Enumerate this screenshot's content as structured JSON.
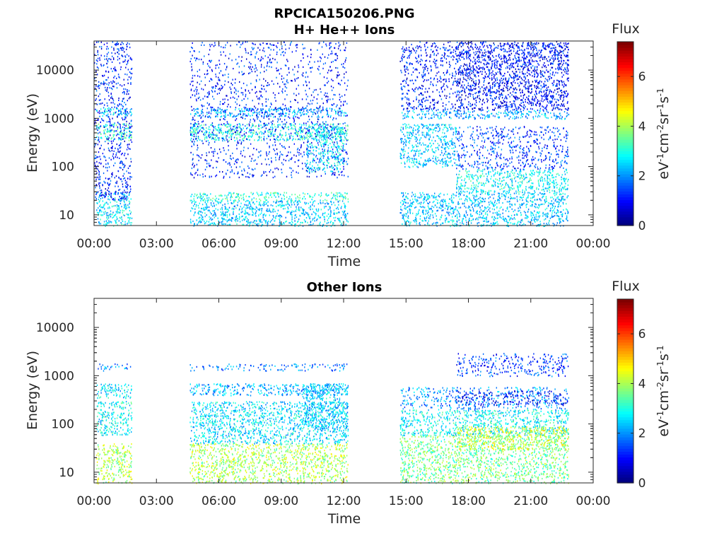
{
  "figure_title": "RPCICA150206.PNG",
  "chart_data": [
    {
      "type": "heatmap",
      "title": "H+ He++ Ions",
      "xlabel": "Time",
      "ylabel": "Energy (eV)",
      "x_ticks": [
        "00:00",
        "03:00",
        "06:00",
        "09:00",
        "12:00",
        "15:00",
        "18:00",
        "21:00",
        "00:00"
      ],
      "x_range_hours": [
        0,
        24
      ],
      "y_scale": "log",
      "y_ticks": [
        "10",
        "100",
        "1000",
        "10000"
      ],
      "y_range": [
        6,
        40000
      ],
      "colorbar": {
        "title": "Flux",
        "unit": "eV⁻¹cm⁻²sr⁻¹s⁻¹",
        "ticks": [
          "0",
          "2",
          "4",
          "6"
        ],
        "range": [
          0,
          7.4
        ],
        "colormap": "jet"
      },
      "data_gaps_hours": [
        [
          1.9,
          4.55
        ],
        [
          12.3,
          14.6
        ]
      ],
      "data_end_hour": 22.8,
      "bands": [
        {
          "t": [
            0.1,
            1.8
          ],
          "e": [
            1100,
            1700
          ],
          "level": 2.5
        },
        {
          "t": [
            0.1,
            1.8
          ],
          "e": [
            350,
            800
          ],
          "level": 3.2
        },
        {
          "t": [
            0.1,
            1.8
          ],
          "e": [
            6,
            30
          ],
          "level": 2.6
        },
        {
          "t": [
            0.0,
            1.8
          ],
          "e": [
            20,
            40000
          ],
          "level": 1.2
        },
        {
          "t": [
            4.6,
            12.2
          ],
          "e": [
            1100,
            1700
          ],
          "level": 2.2
        },
        {
          "t": [
            4.6,
            12.2
          ],
          "e": [
            350,
            800
          ],
          "level": 2.9
        },
        {
          "t": [
            4.6,
            12.2
          ],
          "e": [
            20,
            30
          ],
          "level": 3.0
        },
        {
          "t": [
            4.6,
            12.2
          ],
          "e": [
            6,
            20
          ],
          "level": 2.4
        },
        {
          "t": [
            4.6,
            12.2
          ],
          "e": [
            60,
            40000
          ],
          "level": 1.2
        },
        {
          "t": [
            10.2,
            12.0
          ],
          "e": [
            80,
            700
          ],
          "level": 2.6
        },
        {
          "t": [
            14.7,
            17.4
          ],
          "e": [
            100,
            800
          ],
          "level": 2.4
        },
        {
          "t": [
            14.7,
            22.8
          ],
          "e": [
            1000,
            1500
          ],
          "level": 2.2
        },
        {
          "t": [
            14.7,
            22.8
          ],
          "e": [
            6,
            30
          ],
          "level": 2.4
        },
        {
          "t": [
            17.4,
            22.8
          ],
          "e": [
            90,
            700
          ],
          "level": 1.4
        },
        {
          "t": [
            17.4,
            22.8
          ],
          "e": [
            30,
            90
          ],
          "level": 2.8
        },
        {
          "t": [
            17.4,
            22.8
          ],
          "e": [
            1500,
            40000
          ],
          "level": 0.9
        },
        {
          "t": [
            14.7,
            22.8
          ],
          "e": [
            1500,
            40000
          ],
          "level": 1.1
        }
      ]
    },
    {
      "type": "heatmap",
      "title": "Other Ions",
      "xlabel": "Time",
      "ylabel": "Energy (eV)",
      "x_ticks": [
        "00:00",
        "03:00",
        "06:00",
        "09:00",
        "12:00",
        "15:00",
        "18:00",
        "21:00",
        "00:00"
      ],
      "x_range_hours": [
        0,
        24
      ],
      "y_scale": "log",
      "y_ticks": [
        "10",
        "100",
        "1000",
        "10000"
      ],
      "y_range": [
        6,
        40000
      ],
      "colorbar": {
        "title": "Flux",
        "unit": "eV⁻¹cm⁻²sr⁻¹s⁻¹",
        "ticks": [
          "0",
          "2",
          "4",
          "6"
        ],
        "range": [
          0,
          7.4
        ],
        "colormap": "jet"
      },
      "data_gaps_hours": [
        [
          1.9,
          4.55
        ],
        [
          12.3,
          14.6
        ]
      ],
      "data_end_hour": 22.8,
      "bands": [
        {
          "t": [
            0.1,
            1.8
          ],
          "e": [
            1300,
            1800
          ],
          "level": 2.0
        },
        {
          "t": [
            0.1,
            1.8
          ],
          "e": [
            350,
            700
          ],
          "level": 2.6
        },
        {
          "t": [
            0.1,
            1.8
          ],
          "e": [
            6,
            40
          ],
          "level": 4.0
        },
        {
          "t": [
            0.1,
            1.8
          ],
          "e": [
            60,
            300
          ],
          "level": 2.8
        },
        {
          "t": [
            4.6,
            12.2
          ],
          "e": [
            1300,
            1800
          ],
          "level": 1.8
        },
        {
          "t": [
            4.6,
            12.2
          ],
          "e": [
            400,
            700
          ],
          "level": 2.2
        },
        {
          "t": [
            4.6,
            12.2
          ],
          "e": [
            6,
            40
          ],
          "level": 4.0
        },
        {
          "t": [
            4.6,
            12.2
          ],
          "e": [
            40,
            300
          ],
          "level": 2.6
        },
        {
          "t": [
            10.0,
            12.2
          ],
          "e": [
            80,
            700
          ],
          "level": 2.4
        },
        {
          "t": [
            14.7,
            22.8
          ],
          "e": [
            6,
            60
          ],
          "level": 3.6
        },
        {
          "t": [
            14.7,
            22.8
          ],
          "e": [
            60,
            200
          ],
          "level": 2.8
        },
        {
          "t": [
            14.7,
            22.8
          ],
          "e": [
            200,
            600
          ],
          "level": 2.0
        },
        {
          "t": [
            17.4,
            22.8
          ],
          "e": [
            30,
            90
          ],
          "level": 4.2
        },
        {
          "t": [
            17.4,
            22.8
          ],
          "e": [
            250,
            500
          ],
          "level": 1.0
        },
        {
          "t": [
            17.4,
            22.8
          ],
          "e": [
            1000,
            3000
          ],
          "level": 1.4
        }
      ]
    }
  ]
}
